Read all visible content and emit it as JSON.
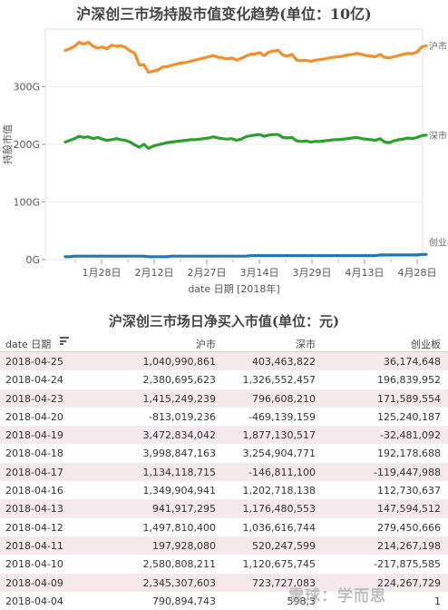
{
  "chart_data": {
    "type": "line",
    "title": "沪深创三市场持股市值变化趋势(单位：10亿)",
    "xlabel": "date 日期 [2018年]",
    "ylabel": "持股市值",
    "x_ticks": [
      "1月28日",
      "2月12日",
      "2月27日",
      "3月14日",
      "3月29日",
      "4月13日",
      "4月28日"
    ],
    "y_ticks": [
      "0G",
      "100G",
      "200G",
      "300G"
    ],
    "ylim": [
      0,
      400
    ],
    "grid": "horizontal",
    "series": [
      {
        "name": "沪市",
        "color": "#f28e2b",
        "values": [
          363,
          366,
          370,
          377,
          374,
          377,
          370,
          367,
          369,
          366,
          372,
          370,
          371,
          368,
          362,
          358,
          338,
          338,
          325,
          327,
          329,
          334,
          335,
          337,
          339,
          341,
          342,
          344,
          346,
          348,
          350,
          352,
          354,
          351,
          350,
          348,
          350,
          346,
          349,
          353,
          356,
          357,
          359,
          354,
          360,
          362,
          363,
          355,
          353,
          356,
          346,
          345,
          346,
          344,
          346,
          347,
          348,
          350,
          351,
          352,
          353,
          355,
          356,
          358,
          356,
          354,
          353,
          352,
          356,
          351,
          350,
          352,
          354,
          356,
          358,
          357,
          360,
          369,
          371
        ]
      },
      {
        "name": "深市",
        "color": "#2ca02c",
        "values": [
          204,
          207,
          210,
          214,
          212,
          213,
          210,
          212,
          209,
          207,
          208,
          210,
          208,
          207,
          204,
          199,
          195,
          200,
          193,
          197,
          199,
          201,
          203,
          204,
          205,
          206,
          207,
          208,
          208,
          209,
          210,
          211,
          213,
          211,
          210,
          209,
          210,
          207,
          209,
          213,
          215,
          216,
          217,
          214,
          216,
          217,
          217,
          212,
          211,
          212,
          206,
          205,
          206,
          204,
          205,
          205,
          206,
          207,
          208,
          208,
          209,
          210,
          211,
          212,
          210,
          209,
          208,
          207,
          210,
          204,
          203,
          206,
          208,
          209,
          211,
          210,
          212,
          215,
          216
        ]
      },
      {
        "name": "创业板",
        "color": "#1f77b4",
        "values": [
          5,
          5,
          6,
          6,
          6,
          6,
          6,
          6,
          6,
          6,
          6,
          6,
          6,
          6,
          6,
          6,
          6,
          6,
          5,
          5,
          5,
          5,
          5,
          6,
          6,
          6,
          6,
          6,
          6,
          6,
          6,
          6,
          6,
          6,
          6,
          6,
          6,
          6,
          6,
          6,
          7,
          7,
          7,
          7,
          7,
          7,
          7,
          7,
          7,
          7,
          7,
          7,
          7,
          7,
          7,
          7,
          7,
          7,
          7,
          7,
          7,
          7,
          7,
          7,
          7,
          7,
          7,
          7,
          8,
          8,
          8,
          8,
          8,
          8,
          8,
          8,
          8,
          9,
          9
        ]
      }
    ],
    "end_labels": [
      "沪市",
      "深市",
      "创业板"
    ]
  },
  "table": {
    "title": "沪深创三市场日净买入市值(单位：元)",
    "headers": {
      "date": "date 日期",
      "sh": "沪市",
      "sz": "深市",
      "cy": "创业板"
    },
    "rows": [
      [
        "2018-04-25",
        "1,040,990,861",
        "403,463,822",
        "36,174,648"
      ],
      [
        "2018-04-24",
        "2,380,695,623",
        "1,326,552,457",
        "196,839,952"
      ],
      [
        "2018-04-23",
        "1,415,249,239",
        "796,608,210",
        "171,589,554"
      ],
      [
        "2018-04-20",
        "-813,019,236",
        "-469,139,159",
        "125,240,187"
      ],
      [
        "2018-04-19",
        "3,472,834,042",
        "1,877,130,517",
        "-32,481,092"
      ],
      [
        "2018-04-18",
        "3,998,847,163",
        "3,254,904,771",
        "192,178,688"
      ],
      [
        "2018-04-17",
        "1,134,118,715",
        "-146,811,100",
        "-119,447,988"
      ],
      [
        "2018-04-16",
        "1,349,904,941",
        "1,202,718,138",
        "112,730,637"
      ],
      [
        "2018-04-13",
        "941,917,295",
        "1,176,480,553",
        "147,594,512"
      ],
      [
        "2018-04-12",
        "1,497,810,400",
        "1,036,616,744",
        "279,450,666"
      ],
      [
        "2018-04-11",
        "197,928,080",
        "520,247,599",
        "214,267,198"
      ],
      [
        "2018-04-10",
        "2,580,808,211",
        "1,120,675,745",
        "-217,875,585"
      ],
      [
        "2018-04-09",
        "2,345,307,603",
        "723,727,083",
        "224,267,729"
      ],
      [
        "2018-04-04",
        "790,894,743",
        "598,3",
        "1"
      ]
    ]
  },
  "watermark": "雪球：学而思"
}
